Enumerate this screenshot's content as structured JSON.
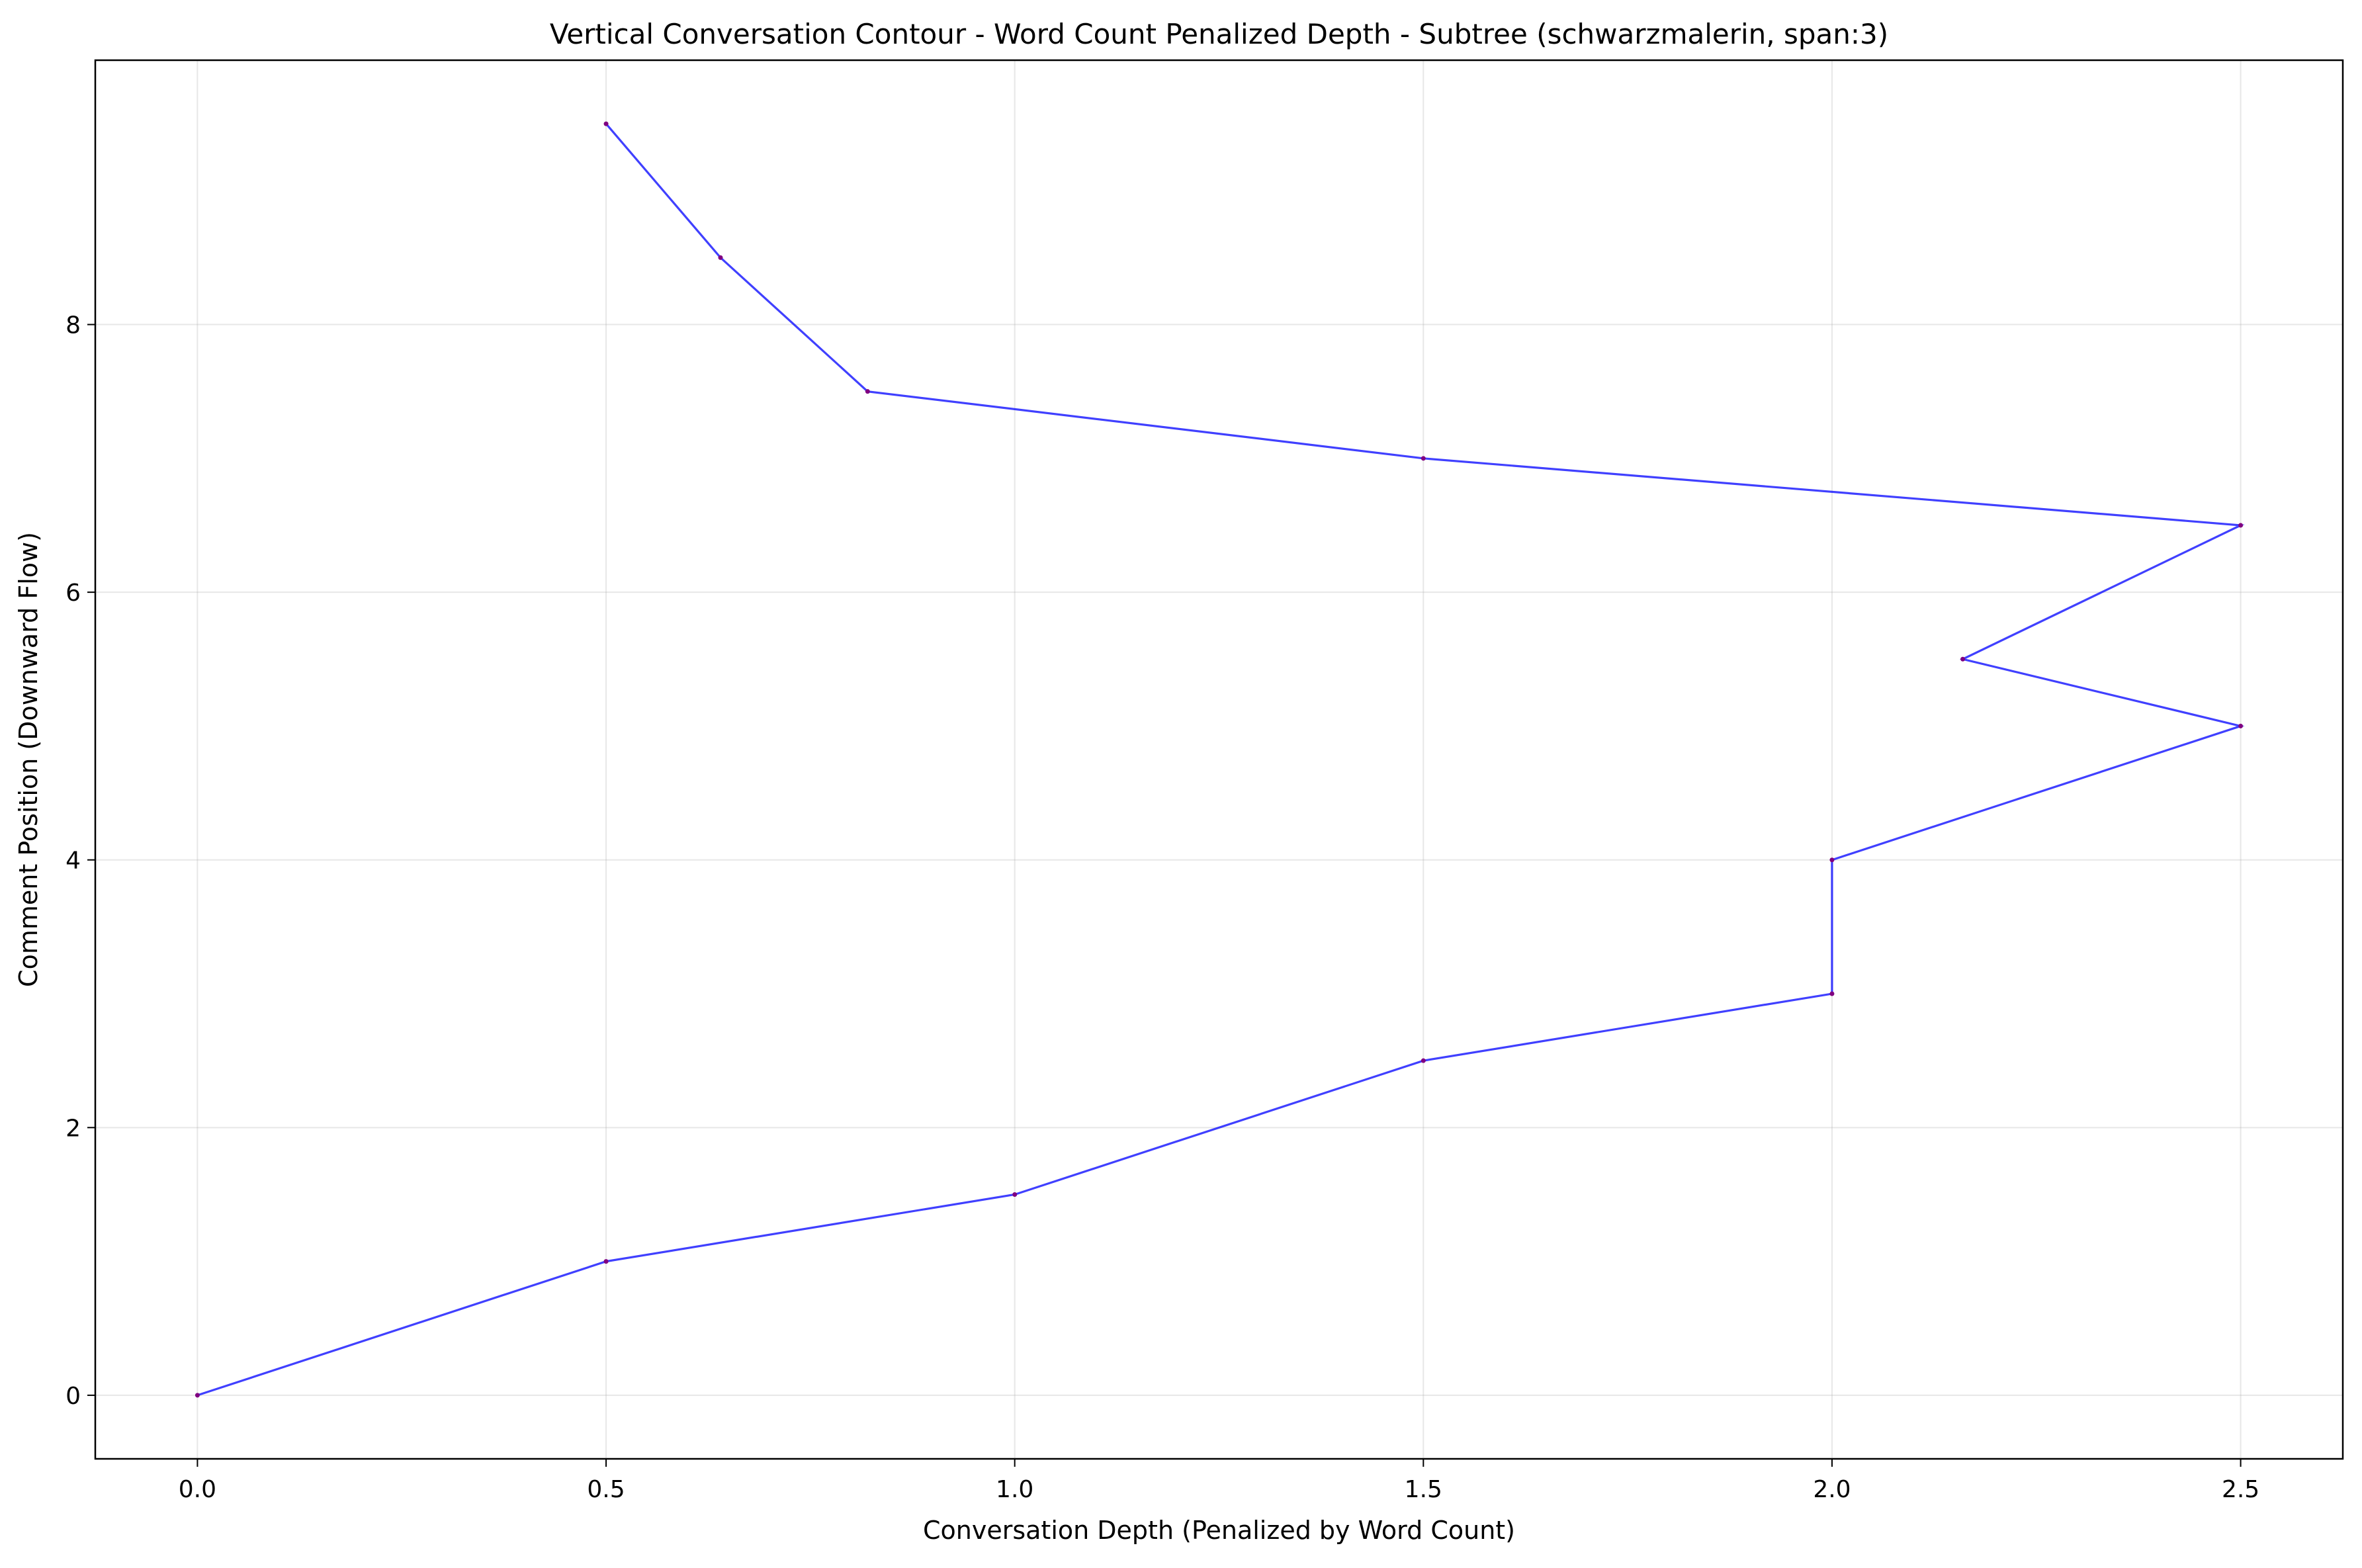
{
  "chart_data": {
    "type": "line",
    "title": "Vertical Conversation Contour - Word Count Penalized Depth - Subtree (schwarzmalerin, span:3)",
    "xlabel": "Conversation Depth (Penalized by Word Count)",
    "ylabel": "Comment Position (Downward Flow)",
    "xlim": [
      -0.125,
      2.625
    ],
    "ylim": [
      -0.475,
      9.975
    ],
    "xticks": [
      0.0,
      0.5,
      1.0,
      1.5,
      2.0,
      2.5
    ],
    "xtick_labels": [
      "0.0",
      "0.5",
      "1.0",
      "1.5",
      "2.0",
      "2.5"
    ],
    "yticks": [
      0,
      2,
      4,
      6,
      8
    ],
    "ytick_labels": [
      "0",
      "2",
      "4",
      "6",
      "8"
    ],
    "grid": true,
    "legend": "none",
    "series": [
      {
        "line_color": "#0000ff",
        "marker_color": "#800080",
        "points": [
          {
            "x": 0.0,
            "y": 0.0
          },
          {
            "x": 0.5,
            "y": 1.0
          },
          {
            "x": 1.0,
            "y": 1.5
          },
          {
            "x": 1.5,
            "y": 2.5
          },
          {
            "x": 2.0,
            "y": 3.0
          },
          {
            "x": 2.0,
            "y": 4.0
          },
          {
            "x": 2.5,
            "y": 5.0
          },
          {
            "x": 2.16,
            "y": 5.5
          },
          {
            "x": 2.5,
            "y": 6.5
          },
          {
            "x": 1.5,
            "y": 7.0
          },
          {
            "x": 0.82,
            "y": 7.5
          },
          {
            "x": 0.64,
            "y": 8.5
          },
          {
            "x": 0.5,
            "y": 9.5
          }
        ]
      }
    ]
  }
}
